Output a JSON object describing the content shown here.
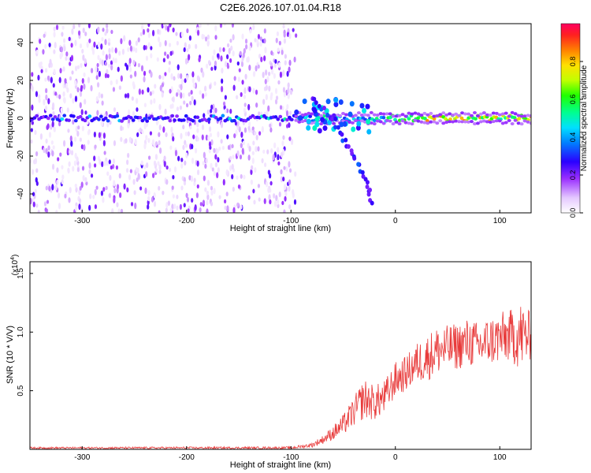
{
  "title": "C2E6.2026.107.01.04.R18",
  "chart_data": [
    {
      "type": "heatmap",
      "name": "spectrogram",
      "xlabel": "Height of straight line (km)",
      "ylabel": "Frequency (Hz)",
      "xlim": [
        -350,
        130
      ],
      "ylim": [
        -50,
        50
      ],
      "xticks": [
        -300,
        -200,
        -100,
        0,
        100
      ],
      "yticks": [
        -40,
        -20,
        0,
        20,
        40
      ],
      "description_series": [
        {
          "name": "noise cloud",
          "x_range": [
            -350,
            -95
          ],
          "y_range": [
            -50,
            50
          ],
          "amplitude_range": [
            0.02,
            0.2
          ]
        },
        {
          "name": "main line",
          "x_range": [
            -350,
            130
          ],
          "frequency": 0,
          "amplitude_range": [
            0.2,
            1.0
          ]
        },
        {
          "name": "falling branch",
          "points": [
            [
              -80,
              10
            ],
            [
              -60,
              0
            ],
            [
              -45,
              -15
            ],
            [
              -30,
              -30
            ],
            [
              -22,
              -45
            ]
          ]
        }
      ],
      "colorbar": {
        "label": "Normalized spectral amplitude",
        "range": [
          0.0,
          1.0
        ],
        "ticks": [
          0.0,
          0.2,
          0.4,
          0.6,
          0.8
        ],
        "tick_labels": [
          "0.0",
          "0.2",
          "0.4",
          "0.6",
          "0.8"
        ]
      }
    },
    {
      "type": "line",
      "name": "snr",
      "xlabel": "Height of straight line (km)",
      "ylabel": "SNR (10 * V/V)",
      "exponent_label": "(x10",
      "exponent_power": "4",
      "xlim": [
        -350,
        130
      ],
      "ylim": [
        0,
        1.6
      ],
      "xticks": [
        -300,
        -200,
        -100,
        0,
        100
      ],
      "yticks": [
        0.5,
        1.0,
        1.5
      ],
      "ytick_labels": [
        "0.5",
        "1.0",
        "1.5"
      ],
      "color": "#e83a3a",
      "envelope": {
        "x": [
          -350,
          -100,
          -80,
          -70,
          -60,
          -50,
          -40,
          -30,
          -20,
          -10,
          0,
          10,
          20,
          30,
          40,
          50,
          60,
          70,
          80,
          90,
          100,
          110,
          120,
          130
        ],
        "baseline": [
          0.01,
          0.01,
          0.03,
          0.07,
          0.12,
          0.18,
          0.28,
          0.38,
          0.35,
          0.4,
          0.55,
          0.6,
          0.68,
          0.72,
          0.78,
          0.8,
          0.82,
          0.85,
          0.82,
          0.86,
          0.88,
          0.9,
          0.88,
          0.9
        ],
        "amplitude": [
          0.015,
          0.02,
          0.04,
          0.07,
          0.12,
          0.18,
          0.25,
          0.35,
          0.3,
          0.3,
          0.3,
          0.3,
          0.35,
          0.4,
          0.42,
          0.4,
          0.4,
          0.42,
          0.4,
          0.42,
          0.45,
          0.45,
          0.6,
          0.4
        ]
      }
    }
  ]
}
